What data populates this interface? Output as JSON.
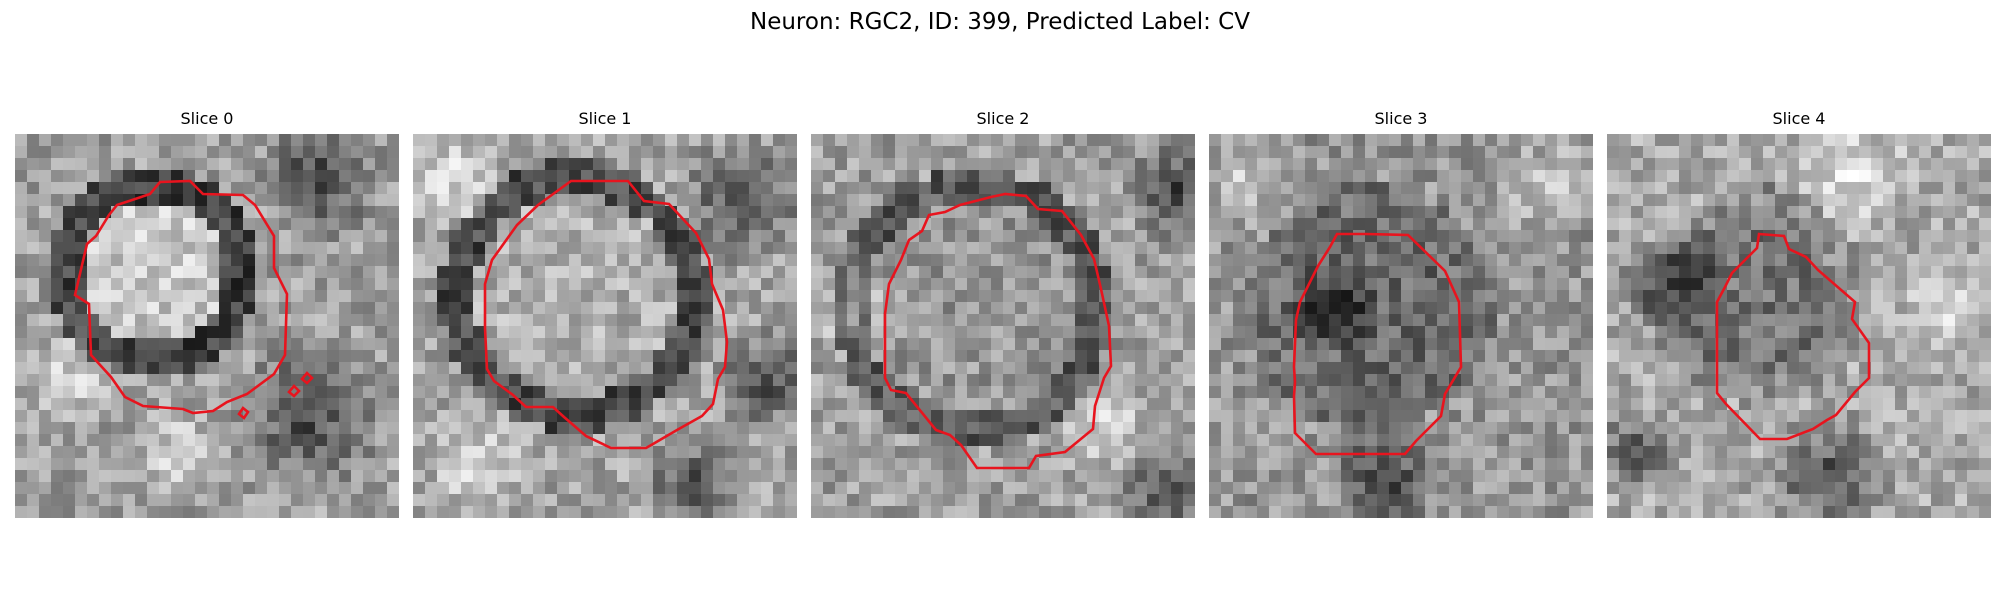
{
  "figure": {
    "title": "Neuron: RGC2, ID: 399, Predicted Label: CV"
  },
  "colors": {
    "contour": "#e8141e",
    "background": "#ffffff"
  },
  "panels": [
    {
      "title": "Slice 0"
    },
    {
      "title": "Slice 1"
    },
    {
      "title": "Slice 2"
    },
    {
      "title": "Slice 3"
    },
    {
      "title": "Slice 4"
    }
  ]
}
